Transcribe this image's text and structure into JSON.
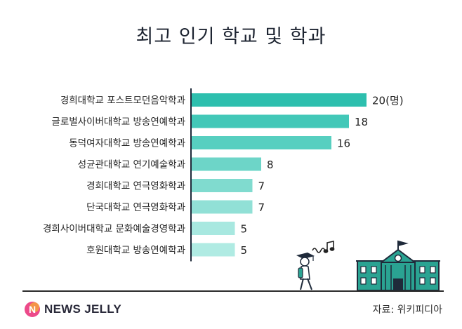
{
  "header": {
    "title": "최고 인기 학교 및 학과"
  },
  "chart_data": {
    "type": "bar",
    "orientation": "horizontal",
    "categories": [
      "경희대학교 포스트모던음악학과",
      "글로벌사이버대학교 방송연예학과",
      "동덕여자대학교 방송연예학과",
      "성균관대학교 연기예술학과",
      "경희대학교 연극영화학과",
      "단국대학교 연극영화학과",
      "경희사이버대학교 문화예술경영학과",
      "호원대학교 방송연예학과"
    ],
    "values": [
      20,
      18,
      16,
      8,
      7,
      7,
      5,
      5
    ],
    "first_label_suffix": "(명)",
    "xlim": [
      0,
      20
    ],
    "grid": false,
    "colors": [
      "#2dbfae",
      "#42c8b8",
      "#57cfc0",
      "#6dd5c8",
      "#80dbcf",
      "#91e0d6",
      "#a8e8e0",
      "#b0ebe3"
    ]
  },
  "footer": {
    "brand": "NEWS JELLY",
    "source": "자료: 위키피디아"
  },
  "icons": {
    "logo": "news-jelly-n-logo-icon",
    "student": "walking-student-icon",
    "music": "music-note-icon",
    "school": "school-building-icon"
  },
  "colors": {
    "axis": "#1f2a3a",
    "building_fill": "#2aa392",
    "building_stroke": "#1f2a3a",
    "logo_pink": "#ec4a8a"
  }
}
